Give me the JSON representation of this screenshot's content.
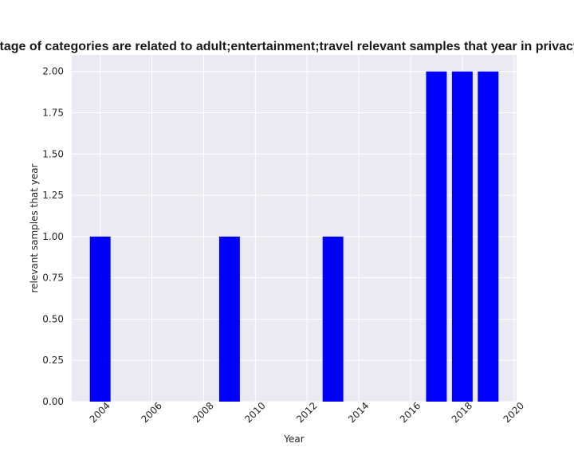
{
  "chart_data": {
    "type": "bar",
    "title": "Percentage of categories are related to adult;entertainment;travel relevant samples that year in privacy policies",
    "xlabel": "Year",
    "ylabel": "relevant samples that year",
    "x": [
      2004,
      2009,
      2013,
      2017,
      2018,
      2019
    ],
    "values": [
      1,
      1,
      1,
      2,
      2,
      2
    ],
    "xlim": [
      2002.9,
      2020.1
    ],
    "ylim": [
      0,
      2.1
    ],
    "xticks": [
      2004,
      2006,
      2008,
      2010,
      2012,
      2014,
      2016,
      2018,
      2020
    ],
    "xtick_labels": [
      "2004",
      "2006",
      "2008",
      "2010",
      "2012",
      "2014",
      "2016",
      "2018",
      "2020"
    ],
    "yticks": [
      0,
      0.25,
      0.5,
      0.75,
      1.0,
      1.25,
      1.5,
      1.75,
      2.0
    ],
    "ytick_labels": [
      "0.00",
      "0.25",
      "0.50",
      "0.75",
      "1.00",
      "1.25",
      "1.50",
      "1.75",
      "2.00"
    ],
    "grid": true,
    "bar_color": "#0000ff",
    "background_color": "#eaeaf2",
    "grid_color": "#ffffff"
  }
}
